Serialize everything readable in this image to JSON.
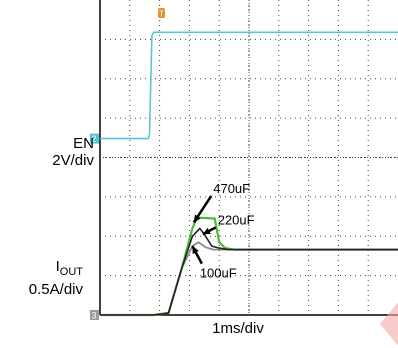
{
  "labels": {
    "en_name": "EN",
    "en_scale": "2V/div",
    "iout_name": "I",
    "iout_sub": "OUT",
    "iout_scale": "0.5A/div",
    "time_scale": "1ms/div",
    "ch2_marker": "2",
    "ch3_marker": "3",
    "trigger_marker": "T"
  },
  "colors": {
    "en_trace": "#5bc4d4",
    "c470_trace": "#4db83a",
    "c220_trace": "#222222",
    "c100_trace": "#8a8a8a",
    "grid": "#444444",
    "trigger": "#e8902a"
  },
  "chart_data": {
    "type": "line",
    "x_unit": "ms",
    "x_range": [
      -1.0,
      9.0
    ],
    "y_unit": "div",
    "y_range": [
      0,
      8
    ],
    "series": [
      {
        "key": "en",
        "x": [
          -1.0,
          0.62,
          0.66,
          0.74,
          0.8,
          9.0
        ],
        "y": [
          4.48,
          4.48,
          4.6,
          7.1,
          7.18,
          7.18
        ]
      },
      {
        "key": "c470",
        "label": "470uF",
        "x": [
          -1.0,
          0.8,
          1.3,
          1.75,
          2.1,
          2.25,
          2.85,
          3.0,
          3.2,
          3.5,
          9.0
        ],
        "y": [
          0.0,
          0.0,
          0.05,
          1.2,
          2.2,
          2.47,
          2.45,
          1.85,
          1.7,
          1.66,
          1.66
        ]
      },
      {
        "key": "c220",
        "label": "220uF",
        "x": [
          -1.0,
          0.8,
          1.3,
          1.75,
          2.1,
          2.35,
          2.5,
          2.75,
          3.0,
          3.3,
          9.0
        ],
        "y": [
          0.0,
          0.0,
          0.05,
          1.2,
          2.0,
          2.2,
          2.05,
          1.75,
          1.7,
          1.66,
          1.66
        ]
      },
      {
        "key": "c100",
        "label": "100uF",
        "x": [
          -1.0,
          0.8,
          1.3,
          1.75,
          2.1,
          2.3,
          2.55,
          2.8,
          3.0,
          9.0
        ],
        "y": [
          0.0,
          0.0,
          0.05,
          1.2,
          1.75,
          1.85,
          1.72,
          1.66,
          1.66,
          1.66
        ]
      }
    ],
    "annotations": [
      {
        "text": "470uF",
        "x": 2.8,
        "y": 3.1
      },
      {
        "text": "220uF",
        "x": 2.95,
        "y": 2.3
      },
      {
        "text": "100uF",
        "x": 2.35,
        "y": 0.95
      }
    ],
    "grid": true,
    "divisions": {
      "x": 10,
      "y": 8
    }
  }
}
